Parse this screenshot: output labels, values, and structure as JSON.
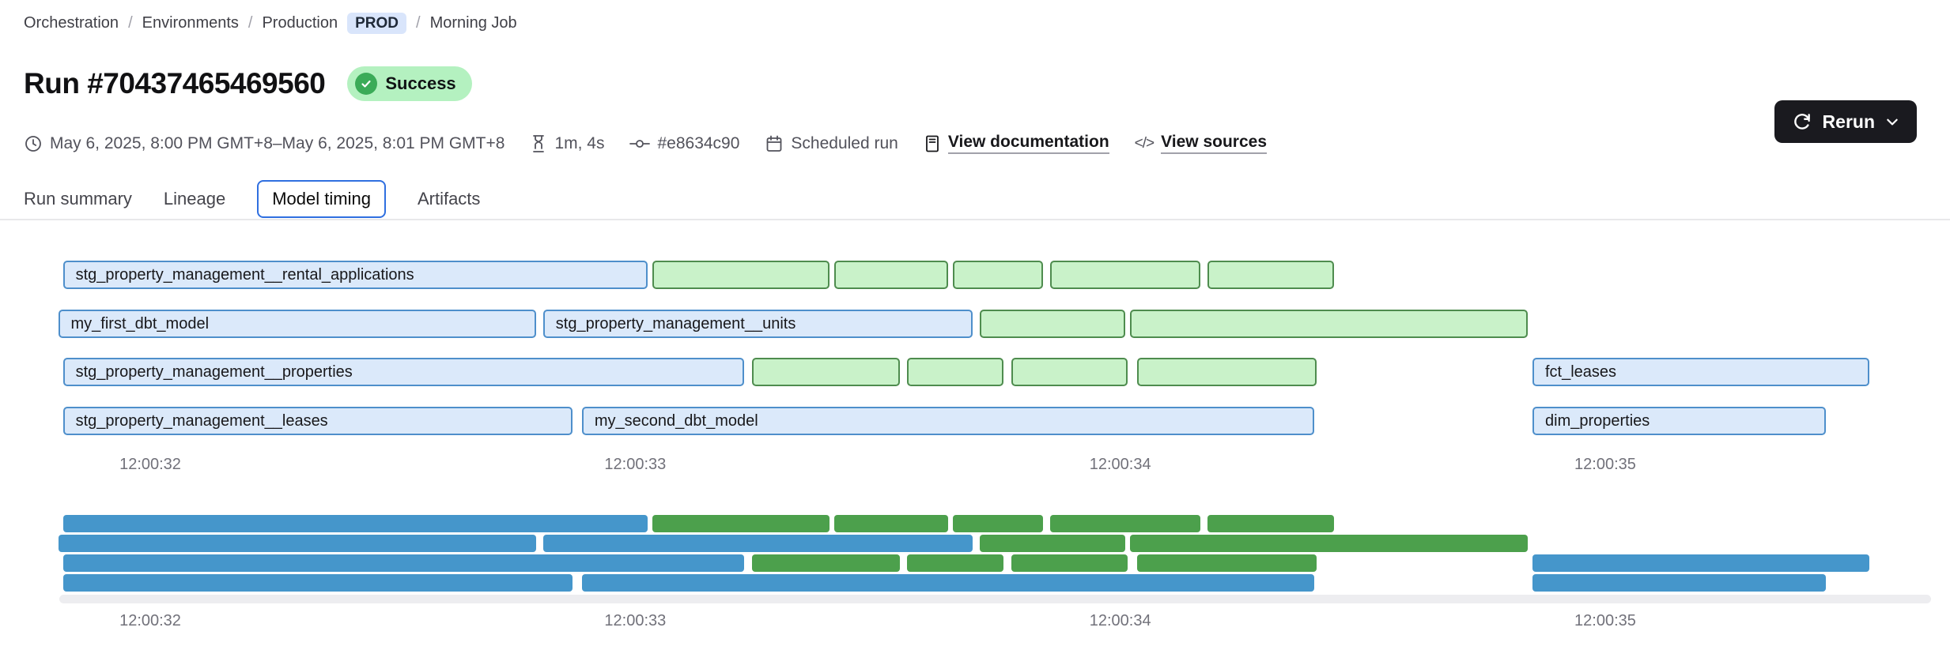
{
  "breadcrumb": {
    "separator": "/",
    "orchestration": "Orchestration",
    "environments": "Environments",
    "production": "Production",
    "env_badge": "PROD",
    "job": "Morning Job"
  },
  "header": {
    "title": "Run #70437465469560",
    "status_label": "Success"
  },
  "actions": {
    "rerun_label": "Rerun"
  },
  "meta": {
    "time_range": "May 6, 2025, 8:00 PM GMT+8–May 6, 2025, 8:01 PM GMT+8",
    "duration": "1m, 4s",
    "commit": "#e8634c90",
    "trigger": "Scheduled run",
    "documentation_link": "View documentation",
    "sources_link": "View sources",
    "code_glyph": "</>"
  },
  "tabs": {
    "run_summary": "Run summary",
    "lineage": "Lineage",
    "model_timing": "Model timing",
    "artifacts": "Artifacts"
  },
  "chart_data": {
    "type": "gantt",
    "title": "Model timing",
    "time_axis": {
      "ticks": [
        "12:00:32",
        "12:00:33",
        "12:00:34",
        "12:00:35"
      ],
      "tick_seconds": [
        32,
        33,
        34,
        35
      ]
    },
    "colors": {
      "bar_blue_fill": "#dbe9fa",
      "bar_blue_border": "#4e8fcb",
      "bar_green_fill": "#c9f2c9",
      "bar_green_border": "#4e8c4e",
      "mini_blue": "#4596cb",
      "mini_green": "#4ca04c"
    },
    "rows": [
      {
        "bars": [
          {
            "label": "stg_property_management__rental_applications",
            "color": "blue",
            "start": 31.82,
            "end": 33.03
          },
          {
            "label": "",
            "color": "green",
            "start": 33.035,
            "end": 33.405
          },
          {
            "label": "",
            "color": "green",
            "start": 33.41,
            "end": 33.65
          },
          {
            "label": "",
            "color": "green",
            "start": 33.655,
            "end": 33.845
          },
          {
            "label": "",
            "color": "green",
            "start": 33.855,
            "end": 34.17
          },
          {
            "label": "",
            "color": "green",
            "start": 34.18,
            "end": 34.445
          }
        ]
      },
      {
        "bars": [
          {
            "label": "my_first_dbt_model",
            "color": "blue",
            "start": 31.81,
            "end": 32.8
          },
          {
            "label": "stg_property_management__units",
            "color": "blue",
            "start": 32.81,
            "end": 33.7
          },
          {
            "label": "",
            "color": "green",
            "start": 33.71,
            "end": 34.015
          },
          {
            "label": "",
            "color": "green",
            "start": 34.02,
            "end": 34.845
          }
        ]
      },
      {
        "bars": [
          {
            "label": "stg_property_management__properties",
            "color": "blue",
            "start": 31.82,
            "end": 33.23
          },
          {
            "label": "",
            "color": "green",
            "start": 33.24,
            "end": 33.55
          },
          {
            "label": "",
            "color": "green",
            "start": 33.56,
            "end": 33.765
          },
          {
            "label": "",
            "color": "green",
            "start": 33.775,
            "end": 34.02
          },
          {
            "label": "",
            "color": "green",
            "start": 34.035,
            "end": 34.41
          },
          {
            "label": "fct_leases",
            "color": "blue",
            "start": 34.85,
            "end": 35.55
          }
        ]
      },
      {
        "bars": [
          {
            "label": "stg_property_management__leases",
            "color": "blue",
            "start": 31.82,
            "end": 32.875
          },
          {
            "label": "my_second_dbt_model",
            "color": "blue",
            "start": 32.89,
            "end": 34.405
          },
          {
            "label": "dim_properties",
            "color": "blue",
            "start": 34.85,
            "end": 35.46
          }
        ]
      }
    ]
  }
}
